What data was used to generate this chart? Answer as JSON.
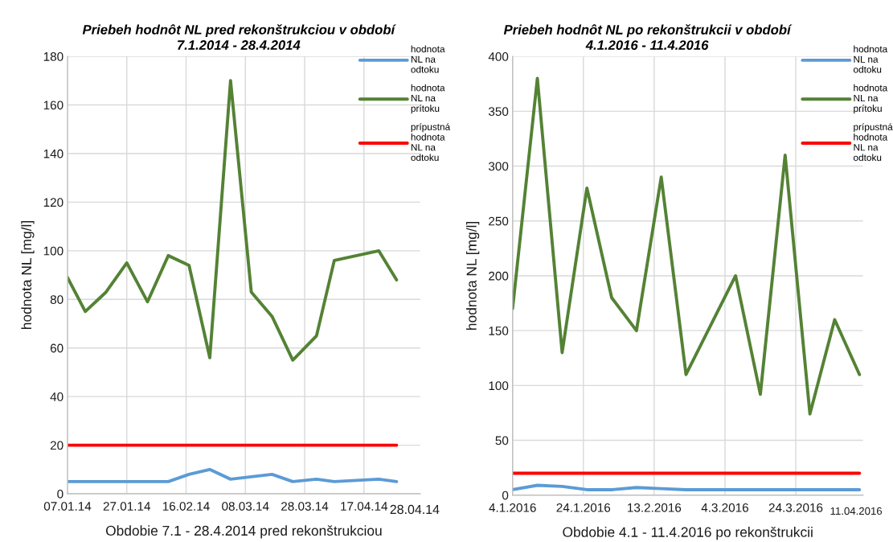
{
  "chart_data": [
    {
      "type": "line",
      "title": "Priebeh hodnôt NL pred rekonštrukciou v období\n7.1.2014 - 28.4.2014",
      "xlabel": "Obdobie 7.1 - 28.4.2014 pred rekonštrukciou",
      "ylabel": "hodnota NL [mg/l]",
      "x": [
        "2014-01-07",
        "2014-01-13",
        "2014-01-20",
        "2014-01-27",
        "2014-02-03",
        "2014-02-10",
        "2014-02-17",
        "2014-02-24",
        "2014-03-03",
        "2014-03-10",
        "2014-03-17",
        "2014-03-24",
        "2014-04-01",
        "2014-04-07",
        "2014-04-22",
        "2014-04-28"
      ],
      "series": [
        {
          "name": "hodnota\nNL na\nodtoku",
          "color": "#5b9bd5",
          "values": [
            5,
            5,
            5,
            5,
            5,
            5,
            8,
            10,
            6,
            7,
            8,
            5,
            6,
            5,
            6,
            5
          ]
        },
        {
          "name": "hodnota\nNL na\nprítoku",
          "color": "#548235",
          "values": [
            89,
            75,
            83,
            95,
            79,
            98,
            94,
            56,
            170,
            83,
            73,
            55,
            65,
            96,
            100,
            88
          ]
        },
        {
          "name": "prípustná\nhodnota\nNL na\nodtoku",
          "color": "#ff0000",
          "x": [
            "2014-01-07",
            "2014-04-28"
          ],
          "values": [
            20,
            20
          ]
        }
      ],
      "xlim": [
        "2014-01-07",
        "2014-05-06"
      ],
      "xticks": [
        {
          "value": "2014-01-07",
          "label": "07.01.14"
        },
        {
          "value": "2014-01-27",
          "label": "27.01.14"
        },
        {
          "value": "2014-02-16",
          "label": "16.02.14"
        },
        {
          "value": "2014-03-08",
          "label": "08.03.14"
        },
        {
          "value": "2014-03-28",
          "label": "28.03.14"
        },
        {
          "value": "2014-04-17",
          "label": "17.04.14"
        }
      ],
      "ylim": [
        0,
        180
      ],
      "yticks": [
        0,
        20,
        40,
        60,
        80,
        100,
        120,
        140,
        160,
        180
      ],
      "annotations": [
        "28.04.14"
      ],
      "grid": true,
      "legend": "top right"
    },
    {
      "type": "line",
      "title": "Priebeh hodnôt NL po rekonštrukcii v období\n4.1.2016 - 11.4.2016",
      "xlabel": "Obdobie 4.1 - 11.4.2016 po rekonštrukcii",
      "ylabel": "hodnota NL [mg/l]",
      "x": [
        "2016-01-04",
        "2016-01-11",
        "2016-01-18",
        "2016-01-25",
        "2016-02-01",
        "2016-02-08",
        "2016-02-15",
        "2016-02-22",
        "2016-03-07",
        "2016-03-14",
        "2016-03-21",
        "2016-03-28",
        "2016-04-04",
        "2016-04-11"
      ],
      "series": [
        {
          "name": "hodnota\nNL na\nodtoku",
          "color": "#5b9bd5",
          "values": [
            5,
            9,
            8,
            5,
            5,
            7,
            6,
            5,
            5,
            5,
            5,
            5,
            5,
            5
          ]
        },
        {
          "name": "hodnota\nNL na\nprítoku",
          "color": "#548235",
          "values": [
            170,
            380,
            130,
            280,
            180,
            150,
            290,
            110,
            200,
            92,
            310,
            74,
            160,
            110
          ]
        },
        {
          "name": "prípustná\nhodnota\nNL na\nodtoku",
          "color": "#ff0000",
          "x": [
            "2016-01-04",
            "2016-04-11"
          ],
          "values": [
            20,
            20
          ]
        }
      ],
      "xlim": [
        "2016-01-04",
        "2016-04-12"
      ],
      "xticks": [
        {
          "value": "2016-01-04",
          "label": "4.1.2016"
        },
        {
          "value": "2016-01-24",
          "label": "24.1.2016"
        },
        {
          "value": "2016-02-13",
          "label": "13.2.2016"
        },
        {
          "value": "2016-03-04",
          "label": "4.3.2016"
        },
        {
          "value": "2016-03-24",
          "label": "24.3.2016"
        }
      ],
      "ylim": [
        0,
        400
      ],
      "yticks": [
        0,
        50,
        100,
        150,
        200,
        250,
        300,
        350,
        400
      ],
      "annotations": [
        "11.04.2016"
      ],
      "grid": true,
      "legend": "top right"
    }
  ]
}
